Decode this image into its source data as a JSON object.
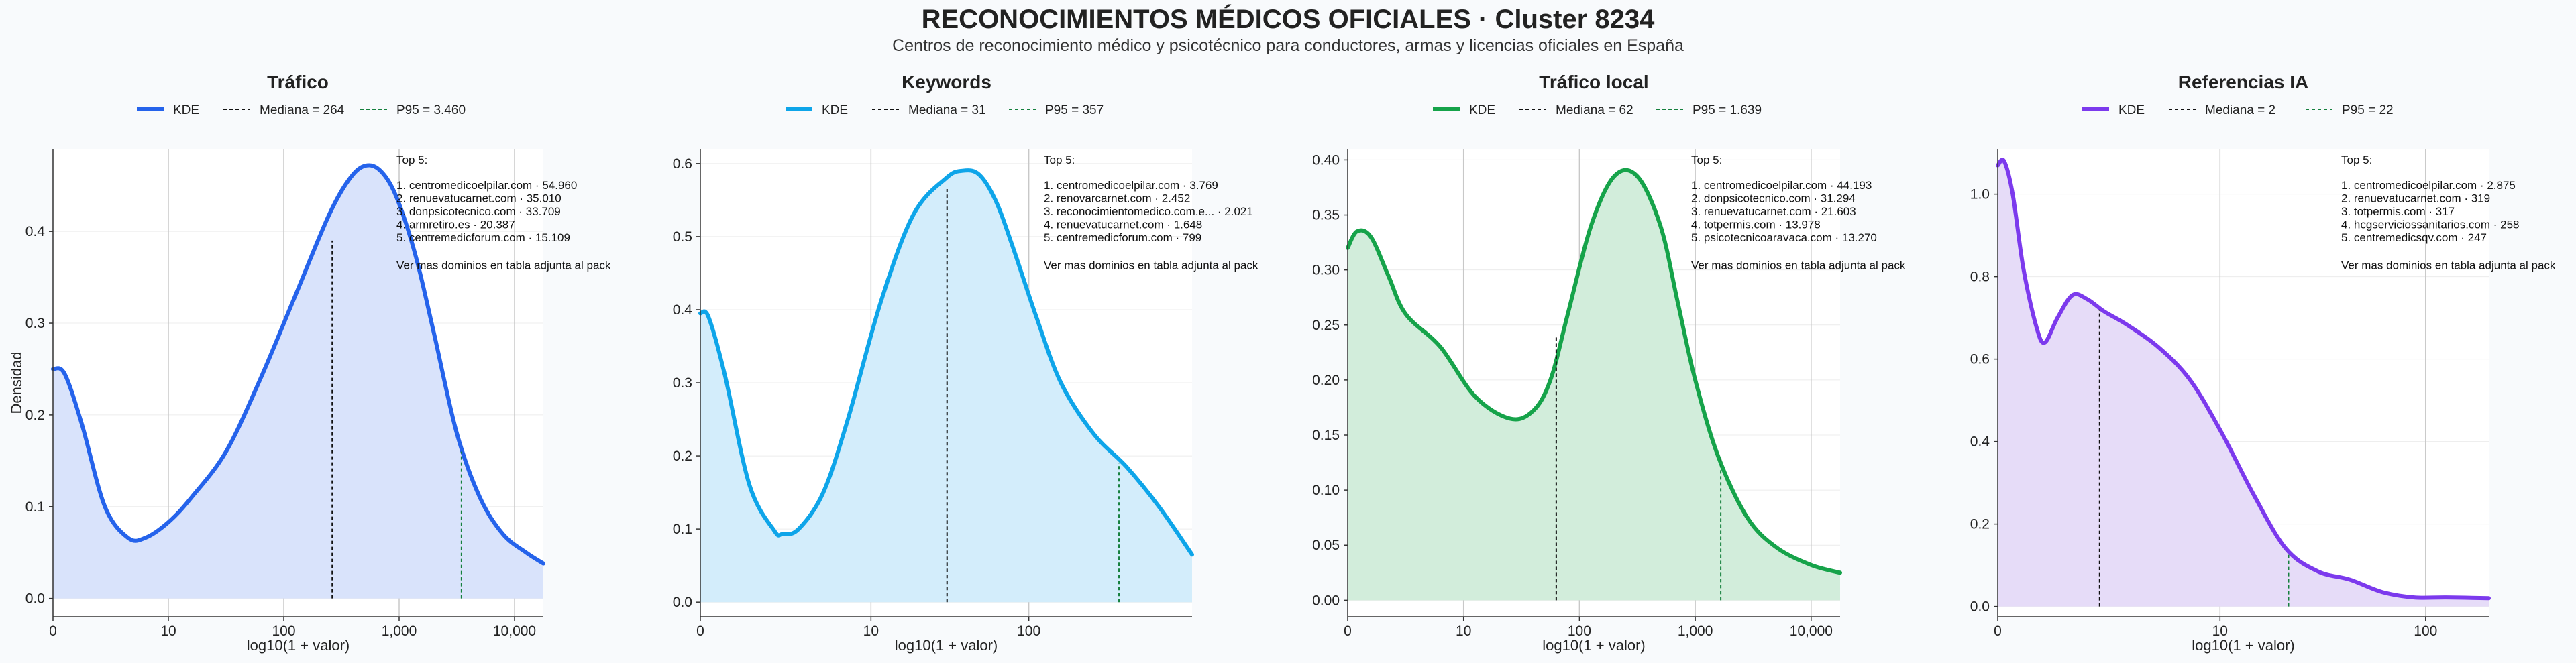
{
  "title": "RECONOCIMIENTOS MÉDICOS OFICIALES · Cluster 8234",
  "subtitle": "Centros de reconocimiento médico y psicotécnico para conductores, armas y licencias oficiales en España",
  "shared": {
    "ylabel": "Densidad",
    "xlabel": "log10(1 + valor)",
    "legend_kde": "KDE",
    "top_heading": "Top 5:",
    "footer_note": "Ver mas dominios en tabla adjunta al pack",
    "median_color": "#111111",
    "p95_color": "#15803d"
  },
  "chart_data": [
    {
      "type": "area",
      "title": "Tráfico",
      "color": "#2563eb",
      "fill": "#d9e3fb",
      "legend": [
        "KDE",
        "Mediana = 264",
        "P95 = 3.460"
      ],
      "x_scale": "log10(1+x)",
      "xlim": [
        0,
        4.25
      ],
      "ylim": [
        -0.02,
        0.49
      ],
      "x_ticks": [
        {
          "v": 0,
          "label": "0"
        },
        {
          "v": 1,
          "label": "10"
        },
        {
          "v": 2,
          "label": "100"
        },
        {
          "v": 3,
          "label": "1,000"
        },
        {
          "v": 4,
          "label": "10,000"
        }
      ],
      "y_ticks": [
        {
          "v": 0,
          "label": "0.0"
        },
        {
          "v": 0.1,
          "label": "0.1"
        },
        {
          "v": 0.2,
          "label": "0.2"
        },
        {
          "v": 0.3,
          "label": "0.3"
        },
        {
          "v": 0.4,
          "label": "0.4"
        }
      ],
      "median": {
        "label": "Mediana = 264",
        "x": 2.42,
        "y": 0.39
      },
      "p95": {
        "label": "P95 = 3.460",
        "x": 3.54,
        "y": 0.16
      },
      "top5": [
        "1. centromedicoelpilar.com · 54.960",
        "2. renuevatucarnet.com · 35.010",
        "3. donpsicotecnico.com · 33.709",
        "4. armretiro.es · 20.387",
        "5. centremedicforum.com · 15.109"
      ],
      "series": [
        {
          "x": [
            0,
            0.1,
            0.25,
            0.45,
            0.65,
            0.8,
            1.0,
            1.2,
            1.5,
            1.8,
            2.1,
            2.4,
            2.6,
            2.75,
            2.88,
            3.0,
            3.15,
            3.3,
            3.5,
            3.7,
            3.9,
            4.1,
            4.25
          ],
          "y": [
            0.25,
            0.245,
            0.19,
            0.1,
            0.066,
            0.066,
            0.083,
            0.11,
            0.16,
            0.24,
            0.33,
            0.42,
            0.462,
            0.472,
            0.46,
            0.43,
            0.37,
            0.29,
            0.18,
            0.11,
            0.07,
            0.05,
            0.038
          ]
        }
      ]
    },
    {
      "type": "area",
      "title": "Keywords",
      "color": "#0ea5e9",
      "fill": "#d3edfb",
      "legend": [
        "KDE",
        "Mediana = 31",
        "P95 = 357"
      ],
      "x_scale": "log10(1+x)",
      "xlim": [
        0,
        3.0
      ],
      "ylim": [
        -0.02,
        0.62
      ],
      "x_ticks": [
        {
          "v": 0,
          "label": "0"
        },
        {
          "v": 1.041,
          "label": "10"
        },
        {
          "v": 2.004,
          "label": "100"
        }
      ],
      "y_ticks": [
        {
          "v": 0,
          "label": "0.0"
        },
        {
          "v": 0.1,
          "label": "0.1"
        },
        {
          "v": 0.2,
          "label": "0.2"
        },
        {
          "v": 0.3,
          "label": "0.3"
        },
        {
          "v": 0.4,
          "label": "0.4"
        },
        {
          "v": 0.5,
          "label": "0.5"
        },
        {
          "v": 0.6,
          "label": "0.6"
        }
      ],
      "median": {
        "label": "Mediana = 31",
        "x": 1.505,
        "y": 0.565
      },
      "p95": {
        "label": "P95 = 357",
        "x": 2.554,
        "y": 0.19
      },
      "top5": [
        "1. centromedicoelpilar.com · 3.769",
        "2. renovarcarnet.com · 2.452",
        "3. reconocimientomedico.com.e... · 2.021",
        "4. renuevatucarnet.com · 1.648",
        "5. centremedicforum.com · 799"
      ],
      "series": [
        {
          "x": [
            0,
            0.05,
            0.15,
            0.3,
            0.45,
            0.5,
            0.6,
            0.75,
            0.9,
            1.1,
            1.3,
            1.5,
            1.6,
            1.7,
            1.8,
            1.9,
            2.05,
            2.2,
            2.4,
            2.6,
            2.8,
            3.0
          ],
          "y": [
            0.395,
            0.39,
            0.31,
            0.16,
            0.098,
            0.093,
            0.1,
            0.15,
            0.25,
            0.41,
            0.53,
            0.58,
            0.59,
            0.585,
            0.55,
            0.49,
            0.39,
            0.3,
            0.23,
            0.185,
            0.13,
            0.065
          ]
        }
      ]
    },
    {
      "type": "area",
      "title": "Tráfico local",
      "color": "#16a34a",
      "fill": "#d2eddb",
      "legend": [
        "KDE",
        "Mediana = 62",
        "P95 = 1.639"
      ],
      "x_scale": "log10(1+x)",
      "xlim": [
        0,
        4.25
      ],
      "ylim": [
        -0.015,
        0.41
      ],
      "x_ticks": [
        {
          "v": 0,
          "label": "0"
        },
        {
          "v": 1,
          "label": "10"
        },
        {
          "v": 2,
          "label": "100"
        },
        {
          "v": 3,
          "label": "1,000"
        },
        {
          "v": 4,
          "label": "10,000"
        }
      ],
      "y_ticks": [
        {
          "v": 0,
          "label": "0.00"
        },
        {
          "v": 0.05,
          "label": "0.05"
        },
        {
          "v": 0.1,
          "label": "0.10"
        },
        {
          "v": 0.15,
          "label": "0.15"
        },
        {
          "v": 0.2,
          "label": "0.20"
        },
        {
          "v": 0.25,
          "label": "0.25"
        },
        {
          "v": 0.3,
          "label": "0.30"
        },
        {
          "v": 0.35,
          "label": "0.35"
        },
        {
          "v": 0.4,
          "label": "0.40"
        }
      ],
      "median": {
        "label": "Mediana = 62",
        "x": 1.8,
        "y": 0.24
      },
      "p95": {
        "label": "P95 = 1.639",
        "x": 3.22,
        "y": 0.13
      },
      "top5": [
        "1. centromedicoelpilar.com · 44.193",
        "2. donpsicotecnico.com · 31.294",
        "3. renuevatucarnet.com · 21.603",
        "4. totpermis.com · 13.978",
        "5. psicotecnicoaravaca.com · 13.270"
      ],
      "series": [
        {
          "x": [
            0,
            0.08,
            0.2,
            0.35,
            0.5,
            0.8,
            1.1,
            1.4,
            1.6,
            1.75,
            1.9,
            2.1,
            2.3,
            2.5,
            2.7,
            2.85,
            3.0,
            3.2,
            3.45,
            3.7,
            4.0,
            4.25
          ],
          "y": [
            0.32,
            0.335,
            0.33,
            0.295,
            0.26,
            0.23,
            0.185,
            0.165,
            0.172,
            0.2,
            0.26,
            0.34,
            0.385,
            0.385,
            0.34,
            0.27,
            0.2,
            0.13,
            0.075,
            0.048,
            0.032,
            0.025
          ]
        }
      ]
    },
    {
      "type": "area",
      "title": "Referencias IA",
      "color": "#7c3aed",
      "fill": "#e6dcf8",
      "legend": [
        "KDE",
        "Mediana = 2",
        "P95 = 22"
      ],
      "x_scale": "log10(1+x)",
      "xlim": [
        0,
        2.3
      ],
      "ylim": [
        -0.025,
        1.11
      ],
      "x_ticks": [
        {
          "v": 0,
          "label": "0"
        },
        {
          "v": 1.041,
          "label": "10"
        },
        {
          "v": 2.004,
          "label": "100"
        }
      ],
      "y_ticks": [
        {
          "v": 0,
          "label": "0.0"
        },
        {
          "v": 0.2,
          "label": "0.2"
        },
        {
          "v": 0.4,
          "label": "0.4"
        },
        {
          "v": 0.6,
          "label": "0.6"
        },
        {
          "v": 0.8,
          "label": "0.8"
        },
        {
          "v": 1.0,
          "label": "1.0"
        }
      ],
      "median": {
        "label": "Mediana = 2",
        "x": 0.477,
        "y": 0.72
      },
      "p95": {
        "label": "P95 = 22",
        "x": 1.362,
        "y": 0.13
      },
      "top5": [
        "1. centromedicoelpilar.com · 2.875",
        "2. renuevatucarnet.com · 319",
        "3. totpermis.com · 317",
        "4. hcgserviciossanitarios.com · 258",
        "5. centremedicsqv.com · 247"
      ],
      "series": [
        {
          "x": [
            0,
            0.03,
            0.07,
            0.12,
            0.18,
            0.22,
            0.28,
            0.35,
            0.42,
            0.5,
            0.6,
            0.75,
            0.9,
            1.05,
            1.2,
            1.35,
            1.5,
            1.65,
            1.8,
            1.95,
            2.1,
            2.3
          ],
          "y": [
            1.07,
            1.08,
            1.0,
            0.82,
            0.68,
            0.64,
            0.7,
            0.755,
            0.745,
            0.715,
            0.685,
            0.63,
            0.55,
            0.42,
            0.27,
            0.14,
            0.085,
            0.065,
            0.035,
            0.022,
            0.022,
            0.02
          ]
        }
      ]
    }
  ]
}
